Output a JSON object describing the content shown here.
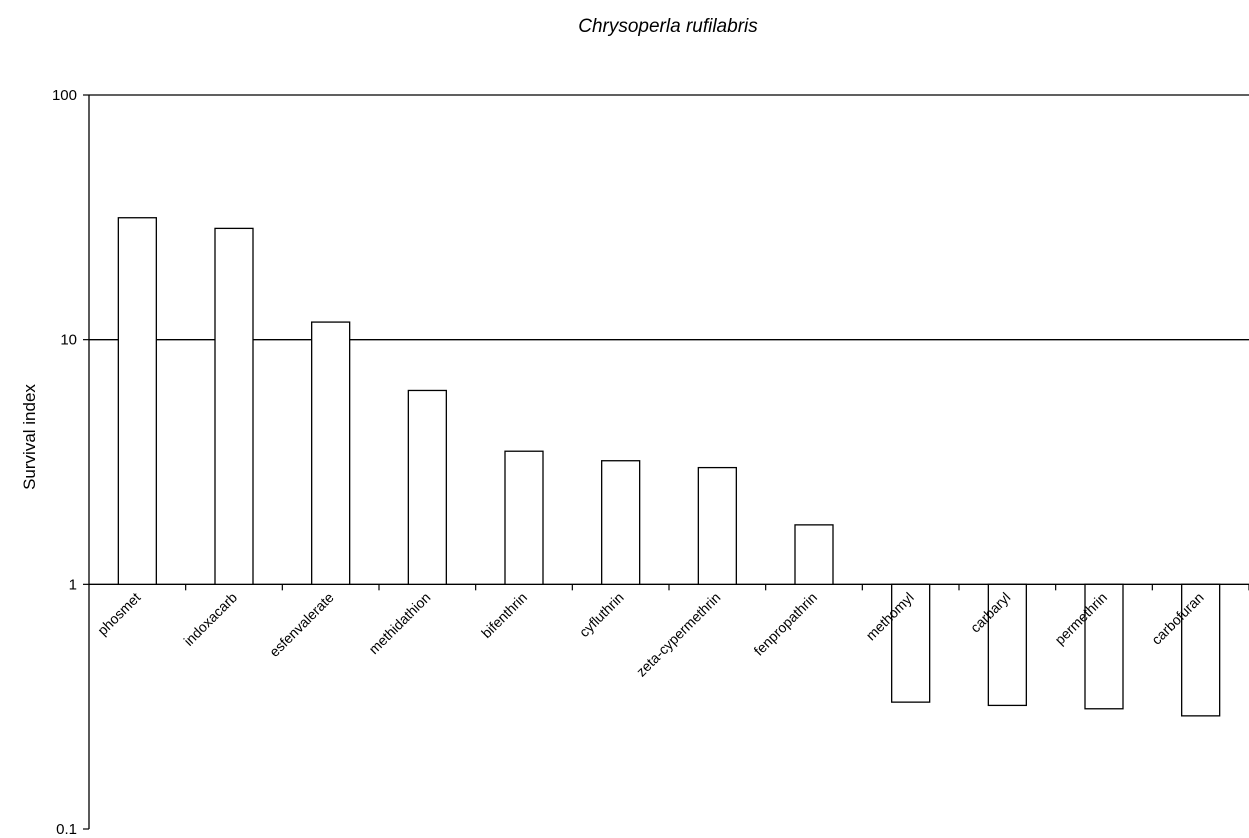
{
  "chart_data": {
    "type": "bar",
    "title": "Chrysoperla rufilabris",
    "xlabel": "",
    "ylabel": "Survival index",
    "yscale": "log",
    "ylim": [
      0.1,
      100
    ],
    "baseline": 1,
    "yticks": [
      "0.1",
      "1",
      "10",
      "100"
    ],
    "grid": "major y gridlines at 1, 10, 100",
    "legend": "none",
    "categories": [
      "phosmet",
      "indoxacarb",
      "esfenvalerate",
      "methidathion",
      "bifenthrin",
      "cyfluthrin",
      "zeta-cypermethrin",
      "fenpropathrin",
      "methomyl",
      "carbaryl",
      "permethrin",
      "carbofuran"
    ],
    "values": [
      31.5,
      28.5,
      11.8,
      6.2,
      3.5,
      3.2,
      3.0,
      1.75,
      0.33,
      0.32,
      0.31,
      0.29
    ],
    "colors": {
      "bar_fill": "#ffffff",
      "bar_stroke": "#000000",
      "axis": "#000000"
    }
  }
}
